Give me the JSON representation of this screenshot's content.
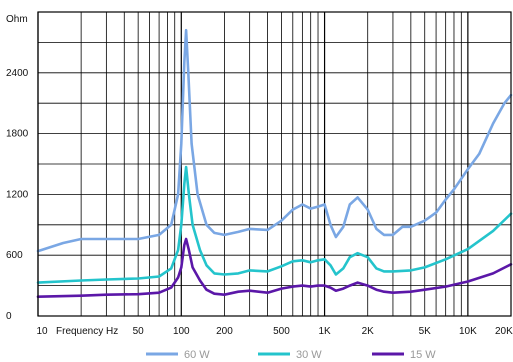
{
  "chart_data": {
    "type": "line",
    "ylabel": "Ohm",
    "xlabel": "Frequency Hz",
    "x_scale": "log",
    "xlim": [
      10,
      20000
    ],
    "ylim": [
      0,
      3000
    ],
    "grid": true,
    "legend_position": "bottom-center",
    "x_ticks": [
      {
        "value": 10,
        "label": "10"
      },
      {
        "value": 50,
        "label": "50"
      },
      {
        "value": 100,
        "label": "100"
      },
      {
        "value": 200,
        "label": "200"
      },
      {
        "value": 500,
        "label": "500"
      },
      {
        "value": 1000,
        "label": "1K"
      },
      {
        "value": 2000,
        "label": "2K"
      },
      {
        "value": 5000,
        "label": "5K"
      },
      {
        "value": 10000,
        "label": "10K"
      },
      {
        "value": 20000,
        "label": "20K"
      }
    ],
    "y_ticks": [
      {
        "value": 0,
        "label": "0"
      },
      {
        "value": 600,
        "label": "600"
      },
      {
        "value": 1200,
        "label": "1200"
      },
      {
        "value": 1800,
        "label": "1800"
      },
      {
        "value": 2400,
        "label": "2400"
      }
    ],
    "series": [
      {
        "name": "60 W",
        "color": "#7AA7E4",
        "points": [
          [
            10,
            640
          ],
          [
            15,
            720
          ],
          [
            20,
            760
          ],
          [
            30,
            760
          ],
          [
            50,
            760
          ],
          [
            70,
            800
          ],
          [
            85,
            900
          ],
          [
            95,
            1200
          ],
          [
            100,
            1700
          ],
          [
            105,
            2500
          ],
          [
            108,
            2820
          ],
          [
            112,
            2400
          ],
          [
            118,
            1700
          ],
          [
            130,
            1200
          ],
          [
            150,
            900
          ],
          [
            170,
            820
          ],
          [
            200,
            800
          ],
          [
            250,
            830
          ],
          [
            300,
            860
          ],
          [
            400,
            850
          ],
          [
            500,
            940
          ],
          [
            600,
            1050
          ],
          [
            700,
            1100
          ],
          [
            800,
            1060
          ],
          [
            900,
            1080
          ],
          [
            1000,
            1100
          ],
          [
            1100,
            900
          ],
          [
            1200,
            780
          ],
          [
            1350,
            880
          ],
          [
            1500,
            1100
          ],
          [
            1700,
            1170
          ],
          [
            2000,
            1050
          ],
          [
            2300,
            860
          ],
          [
            2600,
            800
          ],
          [
            3000,
            800
          ],
          [
            3500,
            880
          ],
          [
            4000,
            880
          ],
          [
            5000,
            940
          ],
          [
            6000,
            1020
          ],
          [
            7000,
            1150
          ],
          [
            8000,
            1250
          ],
          [
            10000,
            1450
          ],
          [
            12000,
            1600
          ],
          [
            15000,
            1900
          ],
          [
            18000,
            2100
          ],
          [
            20000,
            2180
          ]
        ]
      },
      {
        "name": "30 W",
        "color": "#24C4CC",
        "points": [
          [
            10,
            330
          ],
          [
            20,
            350
          ],
          [
            30,
            360
          ],
          [
            50,
            370
          ],
          [
            70,
            390
          ],
          [
            85,
            470
          ],
          [
            95,
            650
          ],
          [
            100,
            900
          ],
          [
            105,
            1300
          ],
          [
            108,
            1470
          ],
          [
            113,
            1200
          ],
          [
            120,
            900
          ],
          [
            135,
            650
          ],
          [
            150,
            500
          ],
          [
            170,
            420
          ],
          [
            200,
            410
          ],
          [
            250,
            420
          ],
          [
            300,
            450
          ],
          [
            400,
            440
          ],
          [
            500,
            490
          ],
          [
            600,
            540
          ],
          [
            700,
            550
          ],
          [
            800,
            530
          ],
          [
            900,
            550
          ],
          [
            1000,
            560
          ],
          [
            1100,
            500
          ],
          [
            1200,
            410
          ],
          [
            1350,
            470
          ],
          [
            1500,
            580
          ],
          [
            1700,
            620
          ],
          [
            2000,
            580
          ],
          [
            2300,
            470
          ],
          [
            2600,
            440
          ],
          [
            3000,
            440
          ],
          [
            4000,
            450
          ],
          [
            5000,
            480
          ],
          [
            7000,
            560
          ],
          [
            10000,
            660
          ],
          [
            15000,
            840
          ],
          [
            20000,
            1010
          ]
        ]
      },
      {
        "name": "15 W",
        "color": "#5B17A8",
        "points": [
          [
            10,
            190
          ],
          [
            20,
            200
          ],
          [
            30,
            210
          ],
          [
            50,
            215
          ],
          [
            70,
            230
          ],
          [
            85,
            280
          ],
          [
            95,
            380
          ],
          [
            100,
            480
          ],
          [
            105,
            700
          ],
          [
            108,
            760
          ],
          [
            113,
            650
          ],
          [
            120,
            480
          ],
          [
            135,
            350
          ],
          [
            150,
            260
          ],
          [
            170,
            220
          ],
          [
            200,
            210
          ],
          [
            250,
            240
          ],
          [
            300,
            250
          ],
          [
            400,
            230
          ],
          [
            500,
            270
          ],
          [
            600,
            290
          ],
          [
            700,
            300
          ],
          [
            800,
            290
          ],
          [
            900,
            300
          ],
          [
            1000,
            300
          ],
          [
            1100,
            280
          ],
          [
            1200,
            250
          ],
          [
            1350,
            270
          ],
          [
            1500,
            300
          ],
          [
            1700,
            330
          ],
          [
            2000,
            300
          ],
          [
            2300,
            260
          ],
          [
            2600,
            240
          ],
          [
            3000,
            230
          ],
          [
            4000,
            240
          ],
          [
            5000,
            260
          ],
          [
            7000,
            290
          ],
          [
            10000,
            340
          ],
          [
            15000,
            420
          ],
          [
            20000,
            510
          ]
        ]
      }
    ]
  }
}
